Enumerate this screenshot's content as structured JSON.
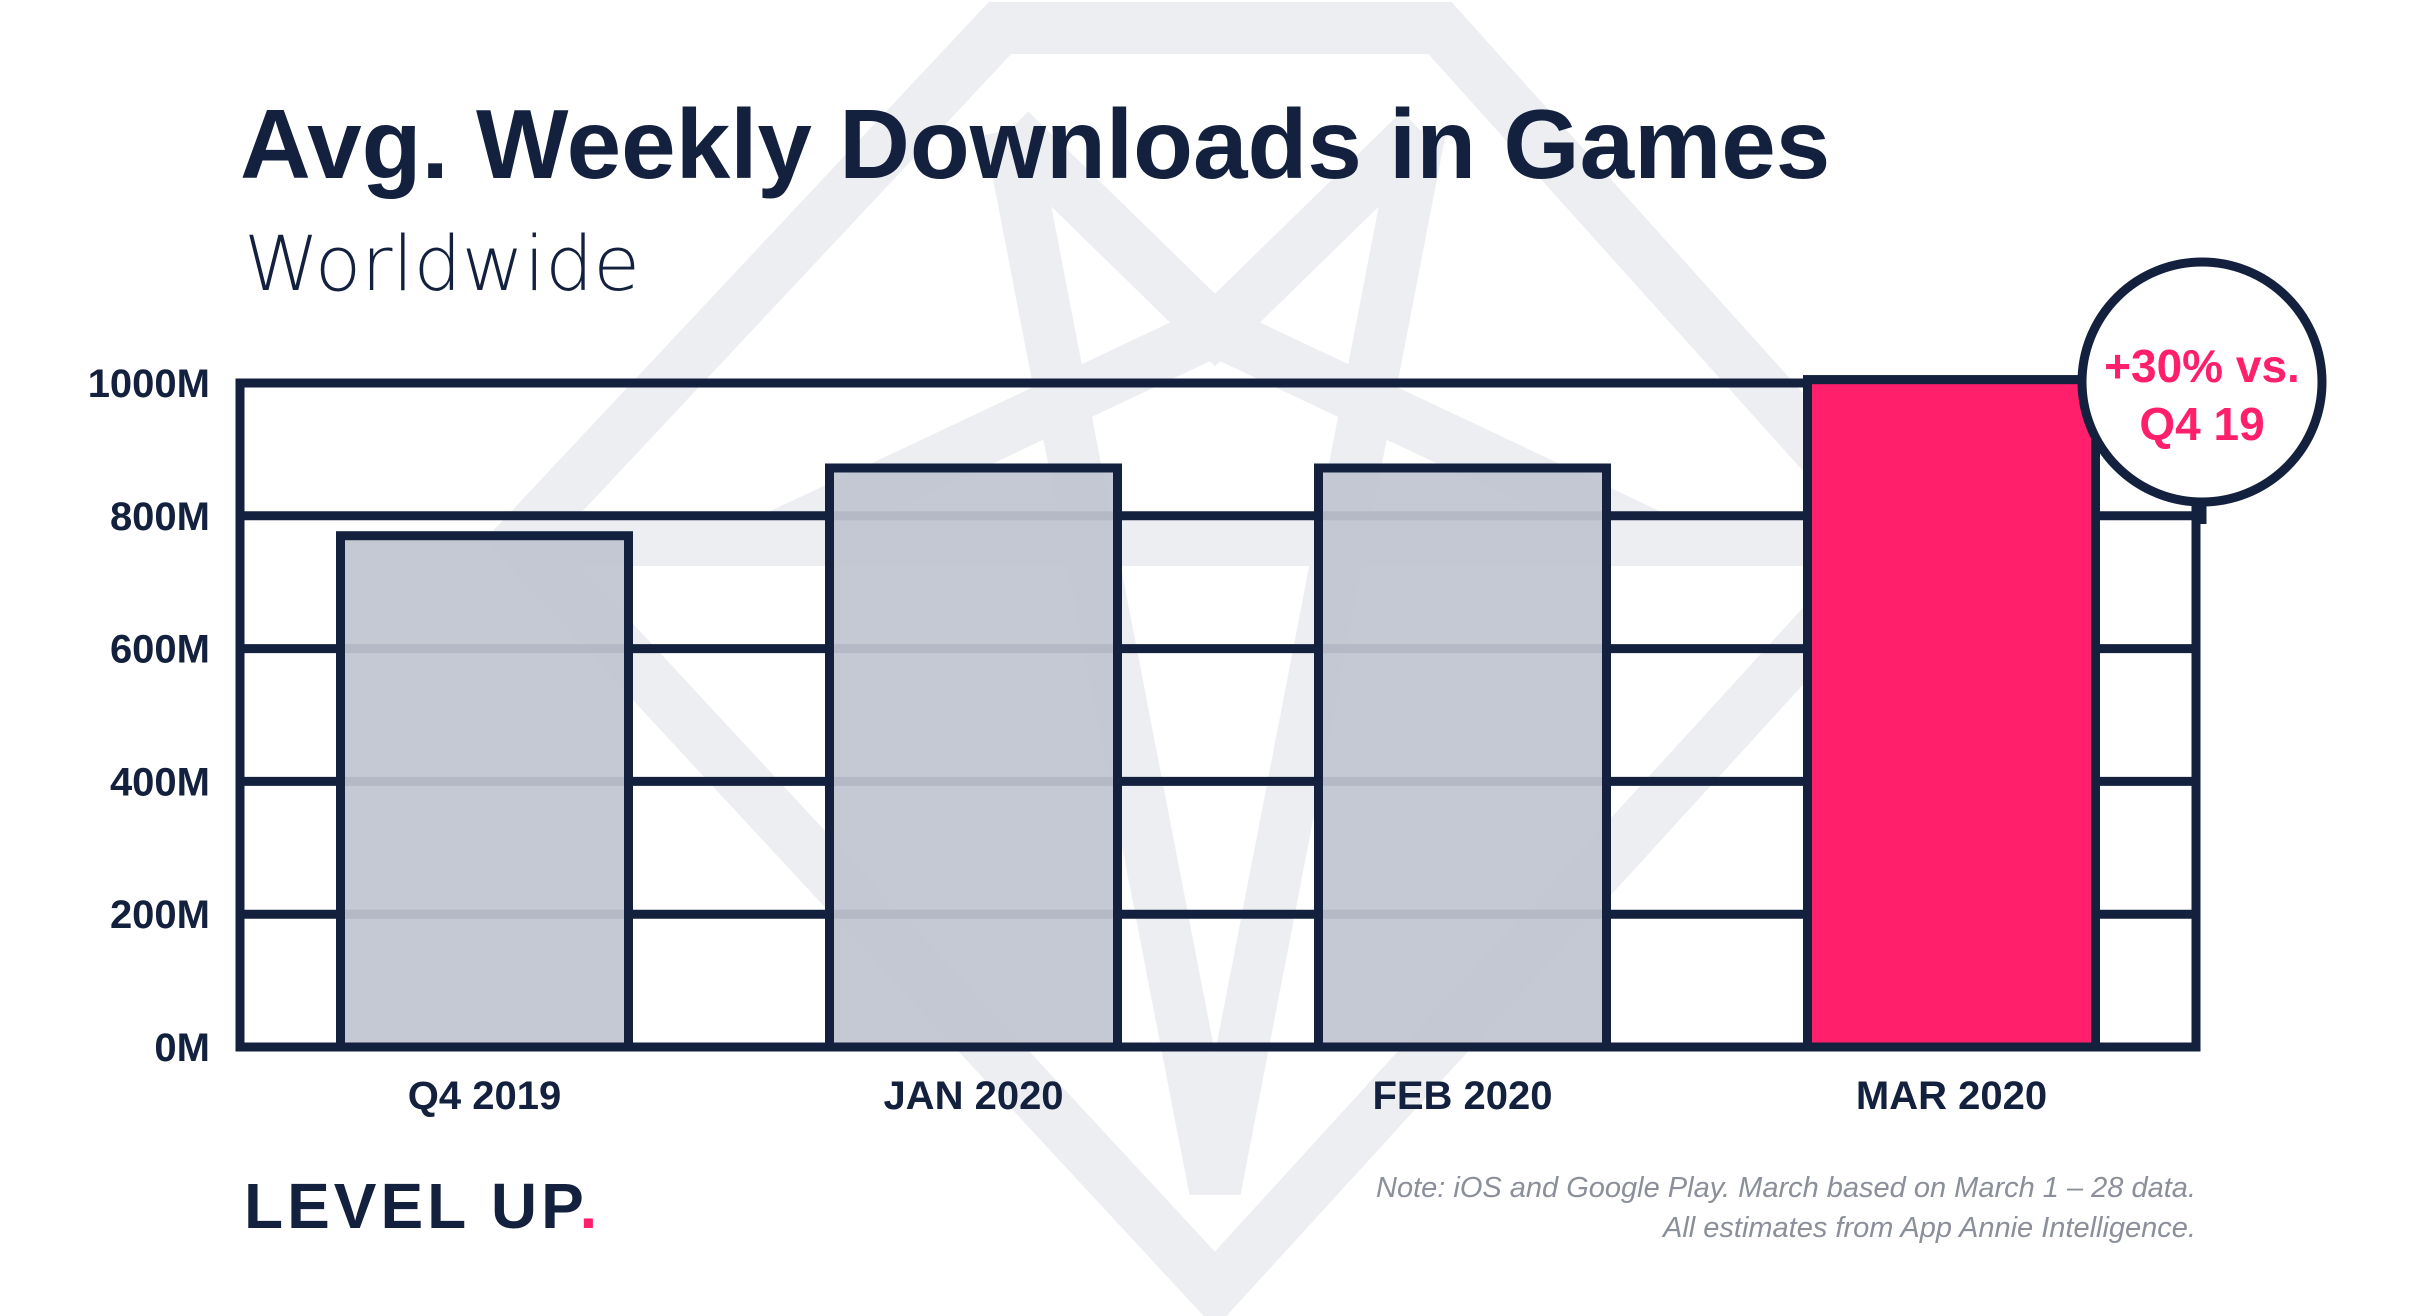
{
  "chart_data": {
    "type": "bar",
    "title": "Avg. Weekly Downloads in Games",
    "subtitle": "Worldwide",
    "xlabel": "",
    "ylabel": "",
    "categories": [
      "Q4 2019",
      "JAN 2020",
      "FEB 2020",
      "MAR 2020"
    ],
    "values": [
      770,
      872,
      872,
      1005
    ],
    "unit": "M",
    "ylim": [
      0,
      1000
    ],
    "yticks": [
      0,
      200,
      400,
      600,
      800,
      1000
    ],
    "ytick_labels": [
      "0M",
      "200M",
      "400M",
      "600M",
      "800M",
      "1000M"
    ],
    "grid": true,
    "legend": "none",
    "highlight_index": 3,
    "annotation": {
      "line1": "+30% vs.",
      "line2": "Q4 19",
      "target_category": "MAR 2020"
    },
    "colors": {
      "frame": "#13213f",
      "bar_default": "#c1c5d0",
      "bar_highlight": "#ff1f6b",
      "annotation_text": "#ff1f6b",
      "watermark": "#eceef1"
    }
  },
  "brand": {
    "logo_text": "LEVEL UP",
    "logo_dot": ".",
    "dot_color": "#ff1f6b"
  },
  "footnote": {
    "line1": "Note: iOS and Google Play. March based on March 1 – 28 data.",
    "line2": "All estimates from App Annie Intelligence."
  }
}
